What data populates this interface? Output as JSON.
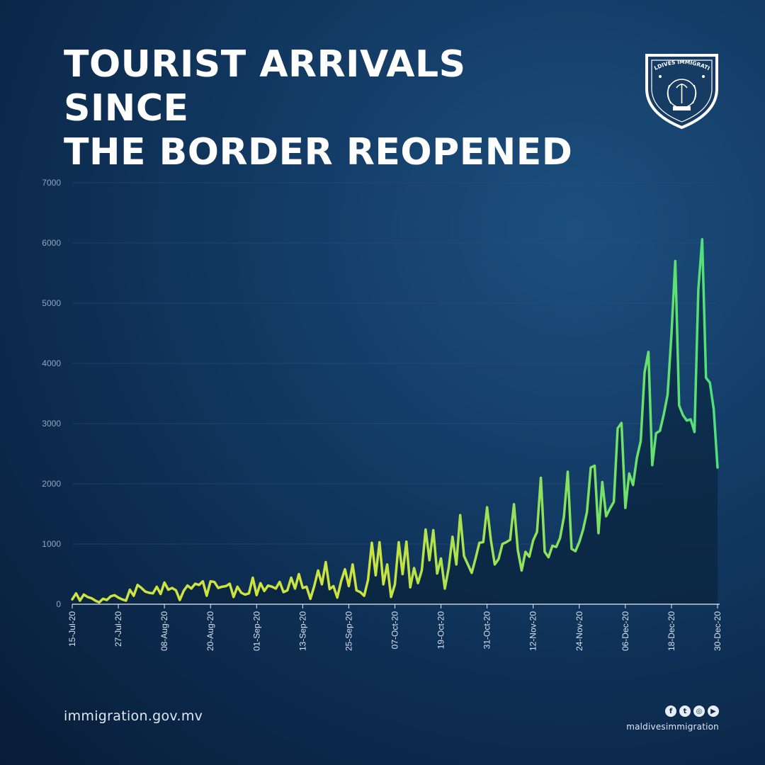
{
  "title_lines": [
    "TOURIST ARRIVALS SINCE",
    "THE BORDER REOPENED"
  ],
  "emblem": {
    "icon": "maldives-immigration-emblem-icon",
    "text": "MALDIVES IMMIGRATION"
  },
  "footer": {
    "url": "immigration.gov.mv",
    "handle": "maldivesimmigration",
    "social_icons": [
      "facebook-icon",
      "twitter-icon",
      "instagram-icon",
      "youtube-icon"
    ]
  },
  "colors": {
    "line_start": "#cde33f",
    "line_end": "#4ee07a",
    "grid": "#2a4f77",
    "tick_text": "#8fa6bd"
  },
  "chart_data": {
    "type": "area",
    "title": "TOURIST ARRIVALS SINCE THE BORDER REOPENED",
    "xlabel": "",
    "ylabel": "",
    "ylim": [
      0,
      7000
    ],
    "yticks": [
      0,
      1000,
      2000,
      3000,
      4000,
      5000,
      6000,
      7000
    ],
    "grid": true,
    "start_date": "15-Jul-20",
    "xtick_labels": [
      "15-Jul-20",
      "27-Jul-20",
      "08-Aug-20",
      "20-Aug-20",
      "01-Sep-20",
      "13-Sep-20",
      "25-Sep-20",
      "07-Oct-20",
      "19-Oct-20",
      "31-Oct-20",
      "12-Nov-20",
      "24-Nov-20",
      "06-Dec-20",
      "18-Dec-20",
      "30-Dec-20"
    ],
    "series": [
      {
        "values": [
          80,
          180,
          60,
          160,
          120,
          100,
          60,
          30,
          90,
          70,
          130,
          150,
          110,
          80,
          60,
          240,
          140,
          320,
          270,
          210,
          190,
          180,
          290,
          170,
          360,
          240,
          270,
          230,
          70,
          220,
          310,
          260,
          340,
          320,
          380,
          140,
          380,
          370,
          270,
          290,
          300,
          340,
          120,
          290,
          190,
          160,
          180,
          440,
          150,
          350,
          220,
          310,
          290,
          260,
          370,
          200,
          230,
          440,
          260,
          500,
          270,
          290,
          90,
          300,
          560,
          330,
          700,
          250,
          300,
          110,
          380,
          580,
          300,
          660,
          230,
          200,
          140,
          400,
          1020,
          480,
          1030,
          330,
          660,
          120,
          330,
          1030,
          500,
          1040,
          280,
          600,
          350,
          560,
          1240,
          730,
          1230,
          510,
          760,
          260,
          600,
          1120,
          660,
          1480,
          800,
          660,
          520,
          760,
          1020,
          1030,
          1610,
          1060,
          660,
          750,
          1000,
          1030,
          1070,
          1660,
          900,
          560,
          870,
          790,
          1060,
          1200,
          2100,
          870,
          780,
          970,
          950,
          1100,
          1450,
          2200,
          920,
          880,
          1030,
          1240,
          1530,
          2270,
          2300,
          1180,
          2030,
          1460,
          1590,
          1700,
          2920,
          3010,
          1600,
          2170,
          1980,
          2430,
          2710,
          3850,
          4190,
          2310,
          2840,
          2880,
          3150,
          3480,
          4480,
          5700,
          3300,
          3140,
          3050,
          3070,
          2860,
          5230,
          6060,
          3760,
          3680,
          3240,
          2270
        ]
      }
    ]
  }
}
